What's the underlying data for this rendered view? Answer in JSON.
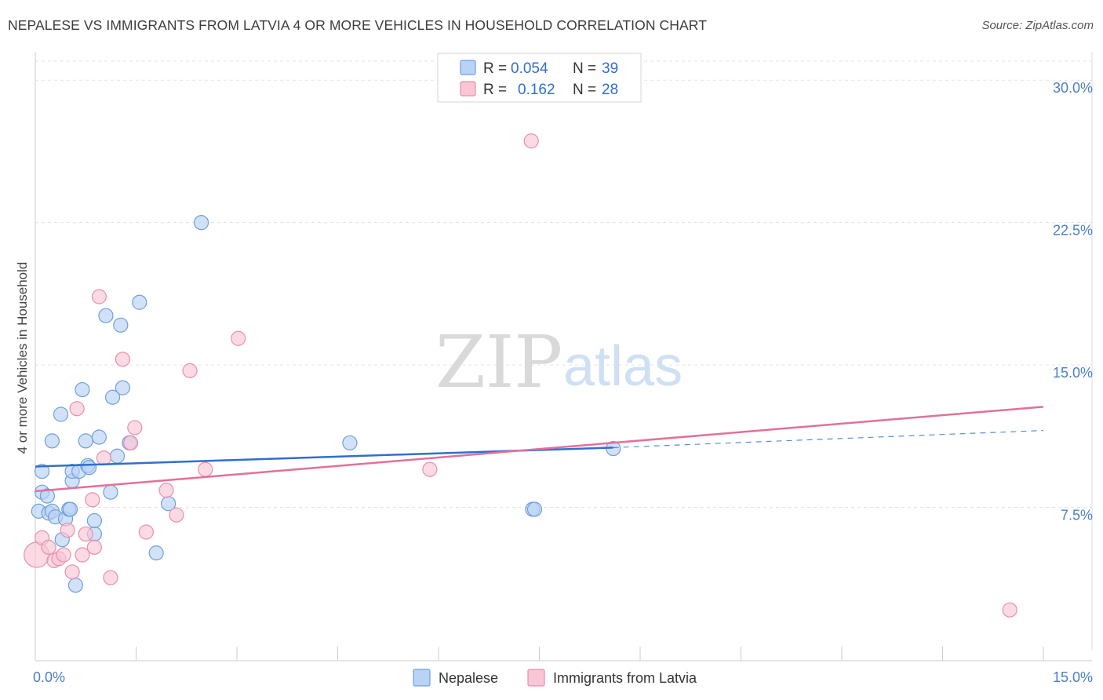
{
  "header": {
    "title": "NEPALESE VS IMMIGRANTS FROM LATVIA 4 OR MORE VEHICLES IN HOUSEHOLD CORRELATION CHART",
    "source": "Source: ZipAtlas.com"
  },
  "watermark": {
    "zip": "ZIP",
    "atlas": "atlas"
  },
  "colors": {
    "nepalese_fill": "#b9d3f5",
    "nepalese_stroke": "#6f9fdc",
    "nepalese_line": "#2f6fce",
    "latvia_fill": "#f9c6d6",
    "latvia_stroke": "#e88fac",
    "latvia_line": "#e2709a",
    "value_text": "#2f6fce",
    "grid": "#e3e3e3"
  },
  "chart_data": {
    "type": "scatter",
    "title": "NEPALESE VS IMMIGRANTS FROM LATVIA 4 OR MORE VEHICLES IN HOUSEHOLD CORRELATION CHART",
    "xlabel": "",
    "ylabel": "4 or more Vehicles in Household",
    "xlim": [
      0,
      15
    ],
    "ylim": [
      0,
      31
    ],
    "x_tick_labels": [
      {
        "value": 0,
        "label": "0.0%"
      },
      {
        "value": 15,
        "label": "15.0%"
      }
    ],
    "y_tick_labels": [
      {
        "value": 7.5,
        "label": "7.5%"
      },
      {
        "value": 15,
        "label": "15.0%"
      },
      {
        "value": 22.5,
        "label": "22.5%"
      },
      {
        "value": 30,
        "label": "30.0%"
      }
    ],
    "grid": true,
    "legend": {
      "placement": "top-center",
      "entries": [
        {
          "r_label": "R =",
          "r_value": "0.054",
          "n_label": "N =",
          "n_value": "39"
        },
        {
          "r_label": "R =",
          "r_value": "0.162",
          "n_label": "N =",
          "n_value": "28"
        }
      ]
    },
    "bottom_legend": [
      "Nepalese",
      "Immigrants from Latvia"
    ],
    "series": [
      {
        "name": "Nepalese",
        "points": [
          [
            0.05,
            7.3
          ],
          [
            0.1,
            8.3
          ],
          [
            0.1,
            9.4
          ],
          [
            0.18,
            8.1
          ],
          [
            0.2,
            7.2
          ],
          [
            0.25,
            7.3
          ],
          [
            0.25,
            11.0
          ],
          [
            0.3,
            7.0
          ],
          [
            0.38,
            12.4
          ],
          [
            0.4,
            5.8
          ],
          [
            0.45,
            6.9
          ],
          [
            0.5,
            7.4
          ],
          [
            0.52,
            7.4
          ],
          [
            0.55,
            8.9
          ],
          [
            0.55,
            9.4
          ],
          [
            0.6,
            3.4
          ],
          [
            0.65,
            9.4
          ],
          [
            0.7,
            13.7
          ],
          [
            0.75,
            11.0
          ],
          [
            0.78,
            9.7
          ],
          [
            0.8,
            9.6
          ],
          [
            0.88,
            6.1
          ],
          [
            0.88,
            6.8
          ],
          [
            0.95,
            11.2
          ],
          [
            1.05,
            17.6
          ],
          [
            1.12,
            8.3
          ],
          [
            1.15,
            13.3
          ],
          [
            1.22,
            10.2
          ],
          [
            1.27,
            17.1
          ],
          [
            1.3,
            13.8
          ],
          [
            1.4,
            10.9
          ],
          [
            1.55,
            18.3
          ],
          [
            1.8,
            5.1
          ],
          [
            1.98,
            7.7
          ],
          [
            2.47,
            22.5
          ],
          [
            4.68,
            10.9
          ],
          [
            7.4,
            7.4
          ],
          [
            7.43,
            7.4
          ],
          [
            8.6,
            10.6
          ]
        ],
        "trend": {
          "x": [
            0,
            8.6
          ],
          "y": [
            9.65,
            10.65
          ]
        },
        "trend_extension": {
          "x": [
            8.6,
            15
          ],
          "y": [
            10.65,
            11.55
          ]
        }
      },
      {
        "name": "Immigrants from Latvia",
        "points": [
          [
            0.02,
            5.0
          ],
          [
            0.1,
            5.9
          ],
          [
            0.2,
            5.4
          ],
          [
            0.28,
            4.7
          ],
          [
            0.35,
            4.8
          ],
          [
            0.42,
            5.0
          ],
          [
            0.48,
            6.3
          ],
          [
            0.55,
            4.1
          ],
          [
            0.62,
            12.7
          ],
          [
            0.7,
            5.0
          ],
          [
            0.75,
            6.1
          ],
          [
            0.85,
            7.9
          ],
          [
            0.88,
            5.4
          ],
          [
            0.95,
            18.6
          ],
          [
            1.02,
            10.1
          ],
          [
            1.12,
            3.8
          ],
          [
            1.3,
            15.3
          ],
          [
            1.42,
            10.9
          ],
          [
            1.48,
            11.7
          ],
          [
            1.65,
            6.2
          ],
          [
            1.95,
            8.4
          ],
          [
            2.1,
            7.1
          ],
          [
            2.3,
            14.7
          ],
          [
            2.53,
            9.5
          ],
          [
            3.02,
            16.4
          ],
          [
            5.87,
            9.5
          ],
          [
            7.38,
            26.8
          ],
          [
            14.5,
            2.1
          ]
        ],
        "trend": {
          "x": [
            0,
            15
          ],
          "y": [
            8.35,
            12.8
          ]
        }
      }
    ]
  }
}
